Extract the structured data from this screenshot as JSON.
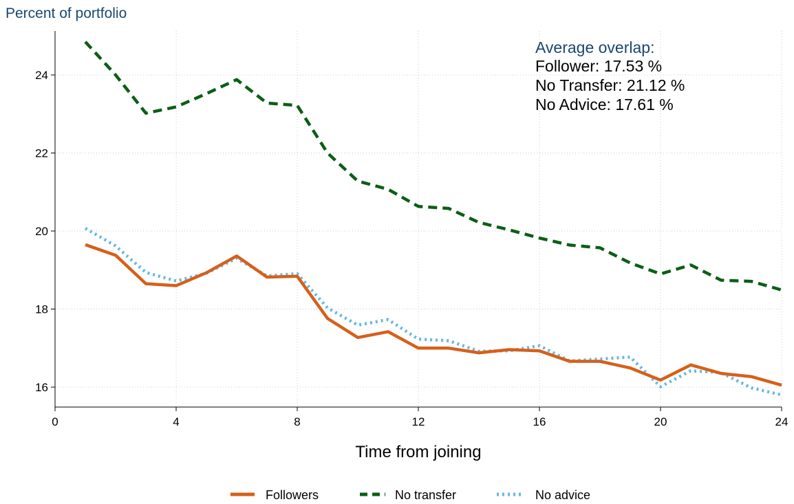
{
  "chart_data": {
    "type": "line",
    "ylabel": "Percent of portfolio",
    "xlabel": "Time from joining",
    "xlim": [
      0,
      24
    ],
    "ylim": [
      15.5,
      25
    ],
    "xticks": [
      0,
      4,
      8,
      12,
      16,
      20,
      24
    ],
    "yticks": [
      16,
      18,
      20,
      22,
      24
    ],
    "grid": true,
    "legend_position": "bottom",
    "x": [
      1,
      2,
      3,
      4,
      5,
      6,
      7,
      8,
      9,
      10,
      11,
      12,
      13,
      14,
      15,
      16,
      17,
      18,
      19,
      20,
      21,
      22,
      23,
      24
    ],
    "series": [
      {
        "name": "Followers",
        "color": "#d5601a",
        "style": "solid",
        "values": [
          19.65,
          19.38,
          18.65,
          18.6,
          18.93,
          19.36,
          18.82,
          18.84,
          17.76,
          17.27,
          17.42,
          17.0,
          17.0,
          16.88,
          16.96,
          16.93,
          16.66,
          16.66,
          16.49,
          16.18,
          16.57,
          16.35,
          16.27,
          16.05
        ]
      },
      {
        "name": "No transfer",
        "color": "#0b5e16",
        "style": "dash",
        "values": [
          24.85,
          24.0,
          23.02,
          23.18,
          23.52,
          23.88,
          23.28,
          23.22,
          22.0,
          21.28,
          21.07,
          20.63,
          20.58,
          20.22,
          20.03,
          19.82,
          19.64,
          19.57,
          19.18,
          18.9,
          19.13,
          18.74,
          18.71,
          18.49
        ]
      },
      {
        "name": "No advice",
        "color": "#65b7e6",
        "style": "dot",
        "values": [
          20.07,
          19.62,
          18.94,
          18.72,
          18.92,
          19.3,
          18.85,
          18.91,
          18.03,
          17.59,
          17.73,
          17.23,
          17.19,
          16.92,
          16.93,
          17.06,
          16.67,
          16.72,
          16.77,
          16.01,
          16.42,
          16.37,
          15.98,
          15.8
        ]
      }
    ],
    "annotation": {
      "title": "Average overlap:",
      "lines": [
        "Follower: 17.53 %",
        "No Transfer: 21.12 %",
        "No Advice: 17.61 %"
      ]
    }
  }
}
